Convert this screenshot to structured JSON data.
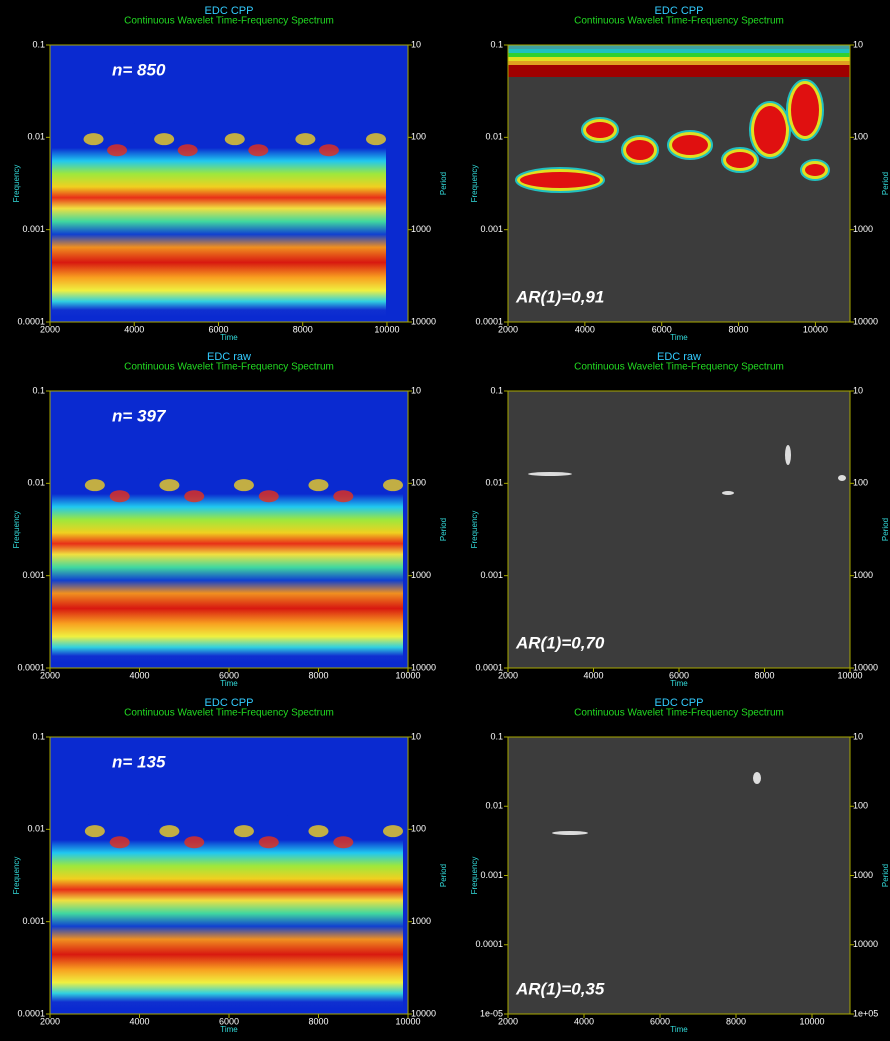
{
  "chart_data": [
    {
      "type": "heatmap",
      "title": "EDC CPP",
      "subtitle": "Continuous Wavelet Time-Frequency Spectrum",
      "annotation": "n= 850",
      "xlabel": "Time",
      "ylabel": "Frequency",
      "y2label": "Period",
      "xlim": [
        2000,
        10500
      ],
      "xticks": [
        2000,
        4000,
        6000,
        8000,
        10000
      ],
      "ylim": [
        0.0001,
        0.1
      ],
      "yticks": [
        0.1,
        0.01,
        0.001,
        0.0001
      ],
      "ylog": true,
      "y2lim": [
        10,
        10000
      ],
      "y2ticks": [
        10,
        100,
        1000,
        10000
      ],
      "y2log": true,
      "y2inverted": true
    },
    {
      "type": "heatmap",
      "title": "EDC CPP",
      "subtitle": "Continuous Wavelet Time-Frequency Spectrum",
      "annotation": "AR(1)=0,91",
      "xlabel": "Time",
      "ylabel": "Frequency",
      "y2label": "Period",
      "xlim": [
        2000,
        10900
      ],
      "xticks": [
        2000,
        4000,
        6000,
        8000,
        10000
      ],
      "ylim": [
        0.0001,
        0.1
      ],
      "yticks": [
        0.1,
        0.01,
        0.001,
        0.0001
      ],
      "ylog": true,
      "y2lim": [
        10,
        10000
      ],
      "y2ticks": [
        10,
        100,
        1000,
        10000
      ],
      "y2log": true,
      "y2inverted": true
    },
    {
      "type": "heatmap",
      "title": "EDC raw",
      "subtitle": "Continuous Wavelet Time-Frequency Spectrum",
      "annotation": "n= 397",
      "xlabel": "Time",
      "ylabel": "Frequency",
      "y2label": "Period",
      "xlim": [
        2000,
        10000
      ],
      "xticks": [
        2000,
        4000,
        6000,
        8000,
        10000
      ],
      "ylim": [
        0.0001,
        0.1
      ],
      "yticks": [
        0.1,
        0.01,
        0.001,
        0.0001
      ],
      "ylog": true,
      "y2lim": [
        10,
        10000
      ],
      "y2ticks": [
        10,
        100,
        1000,
        10000
      ],
      "y2log": true,
      "y2inverted": true
    },
    {
      "type": "heatmap",
      "title": "EDC raw",
      "subtitle": "Continuous Wavelet Time-Frequency Spectrum",
      "annotation": "AR(1)=0,70",
      "xlabel": "Time",
      "ylabel": "Frequency",
      "y2label": "Period",
      "xlim": [
        2000,
        10000
      ],
      "xticks": [
        2000,
        4000,
        6000,
        8000,
        10000
      ],
      "ylim": [
        0.0001,
        0.1
      ],
      "yticks": [
        0.1,
        0.01,
        0.001,
        0.0001
      ],
      "ylog": true,
      "y2lim": [
        10,
        10000
      ],
      "y2ticks": [
        10,
        100,
        1000,
        10000
      ],
      "y2log": true,
      "y2inverted": true
    },
    {
      "type": "heatmap",
      "title": "EDC CPP",
      "subtitle": "Continuous Wavelet Time-Frequency Spectrum",
      "annotation": "n= 135",
      "xlabel": "Time",
      "ylabel": "Frequency",
      "y2label": "Period",
      "xlim": [
        2000,
        10000
      ],
      "xticks": [
        2000,
        4000,
        6000,
        8000,
        10000
      ],
      "ylim": [
        0.0001,
        0.1
      ],
      "yticks": [
        0.1,
        0.01,
        0.001,
        0.0001
      ],
      "ylog": true,
      "y2lim": [
        10,
        10000
      ],
      "y2ticks": [
        10,
        100,
        1000,
        10000
      ],
      "y2log": true,
      "y2inverted": true
    },
    {
      "type": "heatmap",
      "title": "EDC CPP",
      "subtitle": "Continuous Wavelet Time-Frequency Spectrum",
      "annotation": "AR(1)=0,35",
      "xlabel": "Time",
      "ylabel": "Frequency",
      "y2label": "Period",
      "xlim": [
        2000,
        11000
      ],
      "xticks": [
        2000,
        4000,
        6000,
        8000,
        10000
      ],
      "ylim": [
        1e-05,
        0.1
      ],
      "yticks": [
        0.1,
        0.01,
        0.001,
        0.0001,
        {
          "value": 1e-05,
          "label": "1e-05"
        }
      ],
      "ylog": true,
      "y2lim": [
        10,
        100000
      ],
      "y2ticks": [
        10,
        100,
        1000,
        10000,
        {
          "value": 100000,
          "label": "1e+05"
        }
      ],
      "y2log": true,
      "y2inverted": true
    }
  ]
}
